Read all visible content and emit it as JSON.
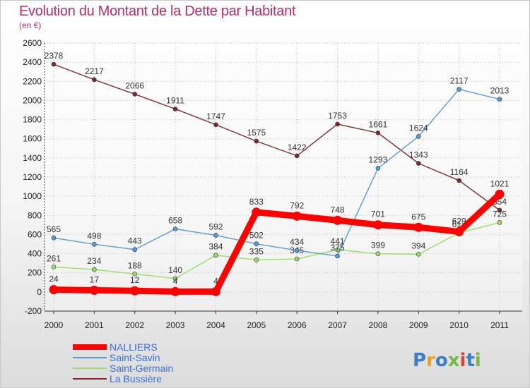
{
  "title": "Evolution du Montant de la Dette par Habitant",
  "subtitle": "(en €)",
  "logo": "Proxiti",
  "chart_data": {
    "type": "line",
    "x": [
      "2000",
      "2001",
      "2002",
      "2003",
      "2004",
      "2005",
      "2006",
      "2007",
      "2008",
      "2009",
      "2010",
      "2011"
    ],
    "ylim": [
      -200,
      2600
    ],
    "yticks": [
      -200,
      0,
      200,
      400,
      600,
      800,
      1000,
      1200,
      1400,
      1600,
      1800,
      2000,
      2200,
      2400,
      2600
    ],
    "grid": true,
    "legend_position": "bottom-left",
    "series": [
      {
        "name": "La Bussière",
        "color": "#7a2a2e",
        "values": [
          2378,
          2217,
          2066,
          1911,
          1747,
          1575,
          1422,
          1753,
          1661,
          1343,
          1164,
          854
        ]
      },
      {
        "name": "Saint-Germain",
        "color": "#99dd66",
        "values": [
          261,
          234,
          188,
          140,
          384,
          335,
          345,
          441,
          399,
          394,
          617,
          725
        ]
      },
      {
        "name": "Saint-Savin",
        "color": "#5b9bd5",
        "values": [
          565,
          498,
          443,
          658,
          592,
          502,
          434,
          375,
          1293,
          1624,
          2117,
          2013
        ]
      },
      {
        "name": "NALLIERS",
        "color": "#ff0000",
        "values": [
          24,
          17,
          12,
          4,
          4,
          833,
          792,
          748,
          701,
          675,
          629,
          1021
        ]
      }
    ]
  }
}
